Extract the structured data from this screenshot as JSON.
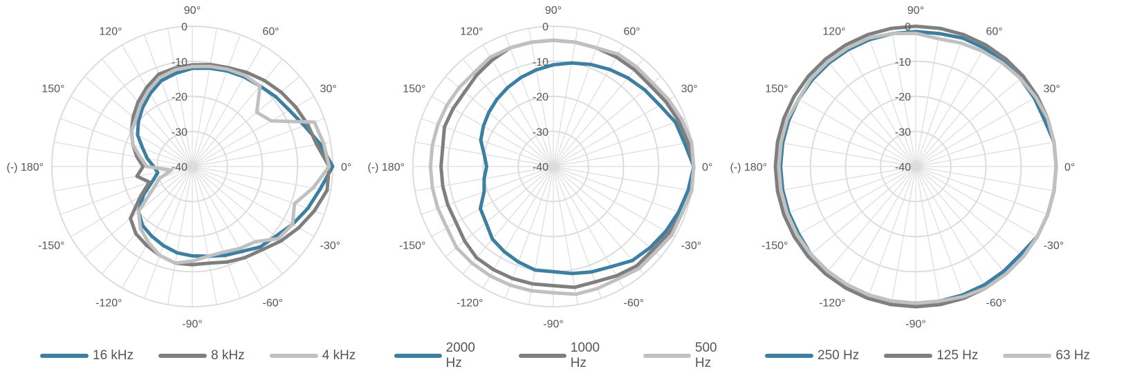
{
  "colors": {
    "grid": "#dcdcdc",
    "label": "#555555"
  },
  "chart_data": [
    {
      "type": "polar-line",
      "r_ticks": [
        "0",
        "-10",
        "-20",
        "-30",
        "-40"
      ],
      "r_range": [
        -40,
        0
      ],
      "angle_labels": [
        {
          "deg": 90,
          "text": "90°"
        },
        {
          "deg": 60,
          "text": "60°"
        },
        {
          "deg": 30,
          "text": "30°"
        },
        {
          "deg": 0,
          "text": "0°"
        },
        {
          "deg": -30,
          "text": "-30°"
        },
        {
          "deg": -60,
          "text": "-60°"
        },
        {
          "deg": -90,
          "text": "-90°"
        },
        {
          "deg": -120,
          "text": "-120°"
        },
        {
          "deg": -150,
          "text": "-150°"
        },
        {
          "deg": 180,
          "text": "(-) 180°"
        },
        {
          "deg": 150,
          "text": "150°"
        },
        {
          "deg": 120,
          "text": "120°"
        }
      ],
      "angles": [
        0,
        10,
        20,
        30,
        40,
        50,
        60,
        70,
        80,
        90,
        100,
        110,
        120,
        130,
        140,
        150,
        160,
        170,
        180,
        190,
        200,
        210,
        220,
        230,
        240,
        250,
        260,
        270,
        280,
        290,
        300,
        310,
        320,
        330,
        340,
        350
      ],
      "series": [
        {
          "name": "16 kHz",
          "color": "#3d7fa0",
          "values": [
            0,
            -3,
            -6,
            -8,
            -9,
            -10,
            -10.5,
            -11,
            -11.5,
            -12,
            -13,
            -14,
            -16,
            -18,
            -20,
            -22,
            -25,
            -27,
            -29,
            -30,
            -28,
            -24,
            -20,
            -18,
            -17,
            -16,
            -15,
            -14.5,
            -14,
            -13,
            -12,
            -10,
            -9,
            -7,
            -5,
            -3
          ]
        },
        {
          "name": "8 kHz",
          "color": "#7f7f7f",
          "values": [
            -1,
            -4,
            -5,
            -6,
            -7,
            -8,
            -9,
            -10,
            -10.5,
            -11,
            -11.5,
            -12,
            -14,
            -16,
            -18,
            -20,
            -22,
            -24,
            -26,
            -24,
            -27,
            -23,
            -17,
            -15,
            -14,
            -13,
            -12,
            -12,
            -12,
            -11,
            -10,
            -9,
            -7,
            -5,
            -3,
            -1
          ]
        },
        {
          "name": "4 kHz",
          "color": "#c0c0c0",
          "values": [
            -1,
            -2,
            -3,
            -14,
            -16,
            -10,
            -10,
            -10.5,
            -11,
            -11.5,
            -12,
            -13,
            -15,
            -17,
            -19,
            -20,
            -22,
            -25,
            -27,
            -34,
            -30,
            -27,
            -20,
            -17,
            -15,
            -13,
            -12,
            -13,
            -14,
            -14,
            -13,
            -12,
            -8,
            -7,
            -9,
            -5
          ]
        }
      ]
    },
    {
      "type": "polar-line",
      "r_ticks": [
        "0",
        "-10",
        "-20",
        "-30",
        "-40"
      ],
      "r_range": [
        -40,
        0
      ],
      "angle_labels": [
        {
          "deg": 90,
          "text": "90°"
        },
        {
          "deg": 60,
          "text": "60°"
        },
        {
          "deg": 30,
          "text": "30°"
        },
        {
          "deg": 0,
          "text": "0°"
        },
        {
          "deg": -30,
          "text": "-30°"
        },
        {
          "deg": -60,
          "text": "-60°"
        },
        {
          "deg": -90,
          "text": "-90°"
        },
        {
          "deg": -120,
          "text": "-120°"
        },
        {
          "deg": -150,
          "text": "-150°"
        },
        {
          "deg": 180,
          "text": "(-) 180°"
        },
        {
          "deg": 150,
          "text": "150°"
        },
        {
          "deg": 120,
          "text": "120°"
        }
      ],
      "angles": [
        0,
        10,
        20,
        30,
        40,
        50,
        60,
        70,
        80,
        90,
        100,
        110,
        120,
        130,
        140,
        150,
        160,
        170,
        180,
        190,
        200,
        210,
        220,
        230,
        240,
        250,
        260,
        270,
        280,
        290,
        300,
        310,
        320,
        330,
        340,
        350
      ],
      "series": [
        {
          "name": "2000 Hz",
          "color": "#3d7fa0",
          "values": [
            0,
            -2,
            -3,
            -5,
            -6,
            -7,
            -8,
            -9,
            -10,
            -11,
            -12,
            -13,
            -14,
            -15,
            -16,
            -17,
            -18,
            -20,
            -21,
            -20,
            -19,
            -16,
            -15,
            -13,
            -12,
            -11,
            -10,
            -10,
            -9,
            -8,
            -7,
            -5,
            -4,
            -3,
            -2,
            -1
          ]
        },
        {
          "name": "1000 Hz",
          "color": "#7f7f7f",
          "values": [
            0,
            -1,
            -2,
            -3,
            -4,
            -4,
            -4,
            -4,
            -4,
            -4,
            -4,
            -4,
            -5,
            -6,
            -7,
            -7,
            -7,
            -8,
            -8,
            -8,
            -8,
            -8,
            -7,
            -6,
            -6,
            -6,
            -6,
            -6,
            -5,
            -5,
            -4,
            -3,
            -3,
            -2,
            -1,
            0
          ]
        },
        {
          "name": "500 Hz",
          "color": "#c0c0c0",
          "values": [
            0,
            0,
            -1,
            -2,
            -3,
            -3,
            -3,
            -4,
            -4,
            -4,
            -4,
            -4,
            -4,
            -5,
            -5,
            -5,
            -5,
            -5,
            -5,
            -5,
            -5,
            -5,
            -4,
            -4,
            -4,
            -4,
            -4,
            -4,
            -3,
            -3,
            -3,
            -2,
            -2,
            -1,
            -1,
            0
          ]
        }
      ]
    },
    {
      "type": "polar-line",
      "r_ticks": [
        "0",
        "-10",
        "-20",
        "-30",
        "-40"
      ],
      "r_range": [
        -40,
        0
      ],
      "angle_labels": [
        {
          "deg": 90,
          "text": "90°"
        },
        {
          "deg": 60,
          "text": "60°"
        },
        {
          "deg": 30,
          "text": "30°"
        },
        {
          "deg": 0,
          "text": "0°"
        },
        {
          "deg": -30,
          "text": "-30°"
        },
        {
          "deg": -60,
          "text": "-60°"
        },
        {
          "deg": -90,
          "text": "-90°"
        },
        {
          "deg": -120,
          "text": "-120°"
        },
        {
          "deg": -150,
          "text": "-150°"
        },
        {
          "deg": 180,
          "text": "(-) 180°"
        },
        {
          "deg": 150,
          "text": "150°"
        },
        {
          "deg": 120,
          "text": "120°"
        }
      ],
      "angles": [
        0,
        10,
        20,
        30,
        40,
        50,
        60,
        70,
        80,
        90,
        100,
        110,
        120,
        130,
        140,
        150,
        160,
        170,
        180,
        190,
        200,
        210,
        220,
        230,
        240,
        250,
        260,
        270,
        280,
        290,
        300,
        310,
        320,
        330,
        340,
        350
      ],
      "series": [
        {
          "name": "250 Hz",
          "color": "#3d7fa0",
          "values": [
            0,
            0,
            -1,
            -1,
            -1,
            -1,
            -1,
            -1,
            -1.5,
            -1.5,
            -1.5,
            -1.5,
            -1.5,
            -1.5,
            -1.5,
            -1.5,
            -1.5,
            -1.5,
            -1.5,
            -1.5,
            -1.5,
            -1.5,
            -1,
            -1,
            -1,
            -1,
            -1,
            -1,
            -1,
            -1,
            -1,
            -1,
            -1,
            0,
            0,
            0
          ]
        },
        {
          "name": "125 Hz",
          "color": "#7f7f7f",
          "values": [
            0,
            0,
            0,
            0,
            0,
            0,
            0,
            0,
            0,
            0,
            0,
            0,
            0,
            0,
            0,
            0,
            0,
            0,
            0,
            0,
            0,
            0,
            0,
            0,
            0,
            0,
            0,
            0,
            0,
            0,
            0,
            0,
            0,
            0,
            0,
            0
          ]
        },
        {
          "name": "63 Hz",
          "color": "#c0c0c0",
          "values": [
            0,
            0,
            0,
            -0.5,
            -1,
            -1.5,
            -2,
            -2.5,
            -3,
            -2,
            -1.5,
            -1,
            -1,
            -1,
            -1,
            -1.5,
            -1,
            -1,
            -1,
            -1,
            -1,
            -1,
            -1,
            -1,
            -1,
            -1,
            -1,
            -1,
            -1,
            -0.5,
            0,
            0,
            0,
            0,
            0,
            0
          ]
        }
      ]
    }
  ]
}
